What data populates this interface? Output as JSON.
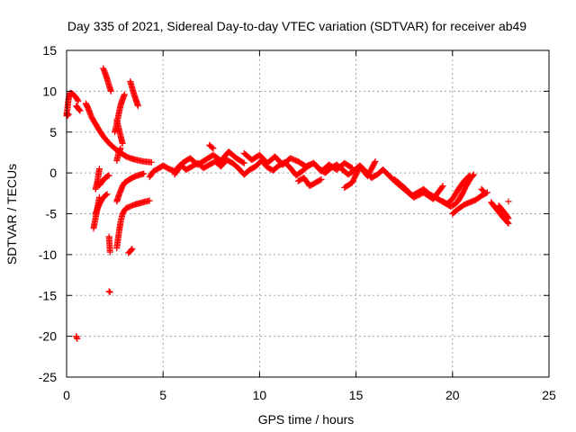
{
  "chart_data": {
    "type": "scatter",
    "title": "Day 335 of 2021, Sidereal Day-to-day VTEC variation (SDTVAR) for receiver ab49",
    "xlabel": "GPS time / hours",
    "ylabel": "SDTVAR / TECUs",
    "xlim": [
      0,
      25
    ],
    "ylim": [
      -25,
      15
    ],
    "x_ticks": [
      0,
      5,
      10,
      15,
      20,
      25
    ],
    "y_ticks": [
      -25,
      -20,
      -15,
      -10,
      -5,
      0,
      5,
      10,
      15
    ],
    "x_tick_labels": [
      "0",
      "5",
      "10",
      "15",
      "20",
      "25"
    ],
    "y_tick_labels": [
      "-25",
      "-20",
      "-15",
      "-10",
      "-5",
      "0",
      "5",
      "10",
      "15"
    ],
    "grid": true,
    "marker": "+",
    "color": "#ff0000",
    "segments": [
      {
        "x": [
          0.0,
          0.05,
          0.1,
          0.15,
          0.2,
          0.3,
          0.4,
          0.5,
          0.6
        ],
        "y": [
          7.0,
          8.0,
          9.0,
          9.6,
          9.8,
          9.7,
          9.5,
          9.2,
          8.8
        ]
      },
      {
        "x": [
          0.0,
          0.05,
          0.1
        ],
        "y": [
          7.3,
          7.0,
          7.2
        ]
      },
      {
        "x": [
          0.5,
          0.55
        ],
        "y": [
          -20.0,
          -20.3
        ]
      },
      {
        "x": [
          0.5,
          0.6,
          0.7
        ],
        "y": [
          8.2,
          7.9,
          7.6
        ]
      },
      {
        "x": [
          1.0,
          1.1,
          1.2,
          1.3,
          1.5,
          1.7,
          1.9,
          2.1,
          2.3,
          2.5,
          2.7,
          2.9,
          3.1,
          3.3,
          3.6,
          4.0,
          4.4
        ],
        "y": [
          8.5,
          8.0,
          7.4,
          6.8,
          6.0,
          5.2,
          4.5,
          3.9,
          3.4,
          3.0,
          2.6,
          2.3,
          2.0,
          1.8,
          1.6,
          1.4,
          1.3
        ]
      },
      {
        "x": [
          1.9,
          2.0,
          2.1,
          2.2,
          2.3
        ],
        "y": [
          12.8,
          12.2,
          11.5,
          10.7,
          10.0
        ]
      },
      {
        "x": [
          2.5,
          2.6,
          2.7,
          2.8,
          2.9,
          3.0
        ],
        "y": [
          5.0,
          6.0,
          7.2,
          8.3,
          9.0,
          9.6
        ]
      },
      {
        "x": [
          2.6,
          2.7,
          2.8,
          2.9
        ],
        "y": [
          6.5,
          5.5,
          4.5,
          3.6
        ]
      },
      {
        "x": [
          3.3,
          3.4,
          3.5,
          3.6,
          3.7
        ],
        "y": [
          11.2,
          10.4,
          9.6,
          8.9,
          8.2
        ]
      },
      {
        "x": [
          1.4,
          1.5,
          1.6,
          1.7
        ],
        "y": [
          -6.8,
          -5.5,
          -4.2,
          -3.0
        ]
      },
      {
        "x": [
          1.5,
          1.6,
          1.7
        ],
        "y": [
          -2.0,
          -1.0,
          0.5
        ]
      },
      {
        "x": [
          1.6,
          1.7,
          1.8,
          2.0,
          2.2
        ],
        "y": [
          -1.0,
          -1.5,
          -1.2,
          -0.6,
          -0.3
        ]
      },
      {
        "x": [
          1.5,
          1.7,
          1.9,
          2.1
        ],
        "y": [
          -5.0,
          -3.8,
          -3.0,
          -2.6
        ]
      },
      {
        "x": [
          2.2,
          2.25
        ],
        "y": [
          -7.8,
          -9.7
        ]
      },
      {
        "x": [
          2.2,
          2.25
        ],
        "y": [
          -14.5,
          -14.6
        ]
      },
      {
        "x": [
          2.6,
          2.7,
          2.8,
          2.9,
          3.0,
          3.1,
          3.3,
          3.5,
          3.8,
          4.1,
          4.3
        ],
        "y": [
          -9.2,
          -7.5,
          -6.0,
          -5.0,
          -4.6,
          -4.3,
          -4.1,
          -3.9,
          -3.7,
          -3.5,
          -3.4
        ]
      },
      {
        "x": [
          2.6,
          2.7,
          2.8,
          2.9,
          3.0,
          3.2,
          3.4,
          3.7,
          4.0
        ],
        "y": [
          -3.5,
          -2.8,
          -2.2,
          -1.6,
          -1.2,
          -0.9,
          -0.6,
          -0.3,
          -0.1
        ]
      },
      {
        "x": [
          2.6,
          2.7,
          2.8
        ],
        "y": [
          1.5,
          2.5,
          3.0
        ]
      },
      {
        "x": [
          3.2,
          3.3,
          3.4
        ],
        "y": [
          -9.8,
          -9.6,
          -9.3
        ]
      },
      {
        "x": [
          4.3,
          4.5,
          4.8,
          5.0,
          5.3,
          5.6,
          5.9,
          6.2,
          6.5,
          6.8,
          7.1,
          7.4,
          7.7,
          8.0,
          8.3,
          8.6,
          8.9,
          9.2,
          9.5,
          9.8,
          10.1,
          10.4,
          10.7,
          11.0,
          11.3,
          11.6,
          11.9,
          12.2,
          12.5,
          12.8,
          13.1,
          13.4,
          13.7,
          14.0,
          14.3,
          14.6,
          14.9,
          15.2,
          15.5,
          15.8,
          16.1,
          16.4,
          16.7,
          17.0,
          17.3,
          17.6,
          17.9,
          18.2,
          18.5,
          18.8,
          19.1,
          19.4,
          19.7,
          20.0,
          20.3,
          20.6,
          20.9
        ],
        "y": [
          -0.5,
          0.2,
          0.6,
          0.9,
          0.5,
          0.2,
          1.0,
          0.4,
          0.8,
          1.2,
          0.6,
          1.0,
          1.4,
          0.8,
          1.6,
          1.2,
          0.6,
          -0.2,
          0.4,
          0.8,
          1.5,
          0.7,
          0.3,
          0.9,
          1.3,
          0.6,
          -0.3,
          0.2,
          0.8,
          1.2,
          0.5,
          0.0,
          0.6,
          1.0,
          0.4,
          -0.2,
          0.3,
          0.9,
          0.2,
          -0.6,
          -0.2,
          0.4,
          -0.3,
          -1.0,
          -1.6,
          -2.2,
          -2.8,
          -2.4,
          -2.0,
          -2.6,
          -3.0,
          -3.4,
          -3.8,
          -3.2,
          -2.0,
          -1.0,
          -0.3
        ]
      },
      {
        "x": [
          5.6,
          6.0,
          6.4,
          6.8,
          7.2,
          7.6,
          8.0,
          8.4,
          8.8,
          9.2
        ],
        "y": [
          -0.2,
          1.2,
          1.8,
          1.0,
          1.6,
          2.2,
          1.5,
          2.6,
          1.8,
          1.2
        ]
      },
      {
        "x": [
          7.4,
          7.5,
          7.6
        ],
        "y": [
          3.4,
          3.2,
          3.0
        ]
      },
      {
        "x": [
          9.2,
          9.6,
          10.0,
          10.4,
          10.8,
          11.2,
          11.6,
          12.0,
          12.4,
          12.8,
          13.2,
          13.6,
          14.0,
          14.4,
          14.8
        ],
        "y": [
          2.4,
          1.6,
          2.2,
          1.2,
          2.0,
          1.0,
          1.8,
          1.4,
          0.8,
          1.2,
          0.2,
          1.0,
          0.4,
          1.2,
          0.6
        ]
      },
      {
        "x": [
          12.0,
          12.3,
          12.6,
          12.9,
          13.2
        ],
        "y": [
          -1.0,
          -0.6,
          -1.6,
          -1.2,
          -0.8
        ]
      },
      {
        "x": [
          14.4,
          14.8,
          15.2,
          15.6,
          16.0
        ],
        "y": [
          -1.8,
          -1.2,
          0.8,
          -0.4,
          1.4
        ]
      },
      {
        "x": [
          17.0,
          17.5,
          18.0,
          18.5,
          19.0,
          19.5
        ],
        "y": [
          -0.8,
          -1.8,
          -3.0,
          -2.4,
          -3.2,
          -1.6
        ]
      },
      {
        "x": [
          19.5,
          19.7,
          19.9,
          20.1,
          20.3,
          20.5,
          20.7,
          20.9,
          21.1
        ],
        "y": [
          -3.5,
          -3.8,
          -4.1,
          -3.9,
          -3.4,
          -2.6,
          -1.6,
          -0.8,
          -0.2
        ]
      },
      {
        "x": [
          20.0,
          20.3,
          20.6,
          20.9,
          21.2,
          21.5,
          21.8
        ],
        "y": [
          -5.0,
          -4.4,
          -3.9,
          -3.6,
          -3.3,
          -2.8,
          -2.4
        ]
      },
      {
        "x": [
          21.5,
          21.6
        ],
        "y": [
          -2.0,
          -2.2
        ]
      },
      {
        "x": [
          22.0,
          22.2,
          22.4,
          22.6,
          22.8,
          22.9
        ],
        "y": [
          -3.6,
          -4.2,
          -4.8,
          -5.4,
          -5.9,
          -6.2
        ]
      },
      {
        "x": [
          22.4,
          22.6,
          22.8,
          22.9
        ],
        "y": [
          -4.0,
          -4.6,
          -5.2,
          -5.6
        ]
      },
      {
        "x": [
          22.9
        ],
        "y": [
          -3.5
        ]
      }
    ]
  }
}
